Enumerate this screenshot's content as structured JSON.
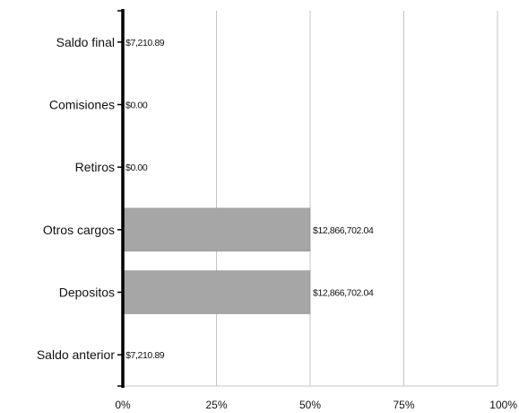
{
  "chart_data": {
    "type": "bar",
    "orientation": "horizontal",
    "categories": [
      "Saldo final",
      "Comisiones",
      "Retiros",
      "Otros cargos",
      "Depositos",
      "Saldo anterior"
    ],
    "values": [
      0.028,
      0,
      0,
      50,
      50,
      0.028
    ],
    "value_unit": "percent",
    "data_labels": [
      "$7,210.89",
      "$0.00",
      "$0.00",
      "$12,866,702.04",
      "$12,866,702.04",
      "$7,210.89"
    ],
    "x_ticks": [
      "0%",
      "25%",
      "50%",
      "75%",
      "100%"
    ],
    "xlim": [
      0,
      100
    ],
    "title": "",
    "xlabel": "",
    "ylabel": "",
    "grid": "vertical",
    "legend": "none",
    "bar_color": "#a6a6a6"
  }
}
